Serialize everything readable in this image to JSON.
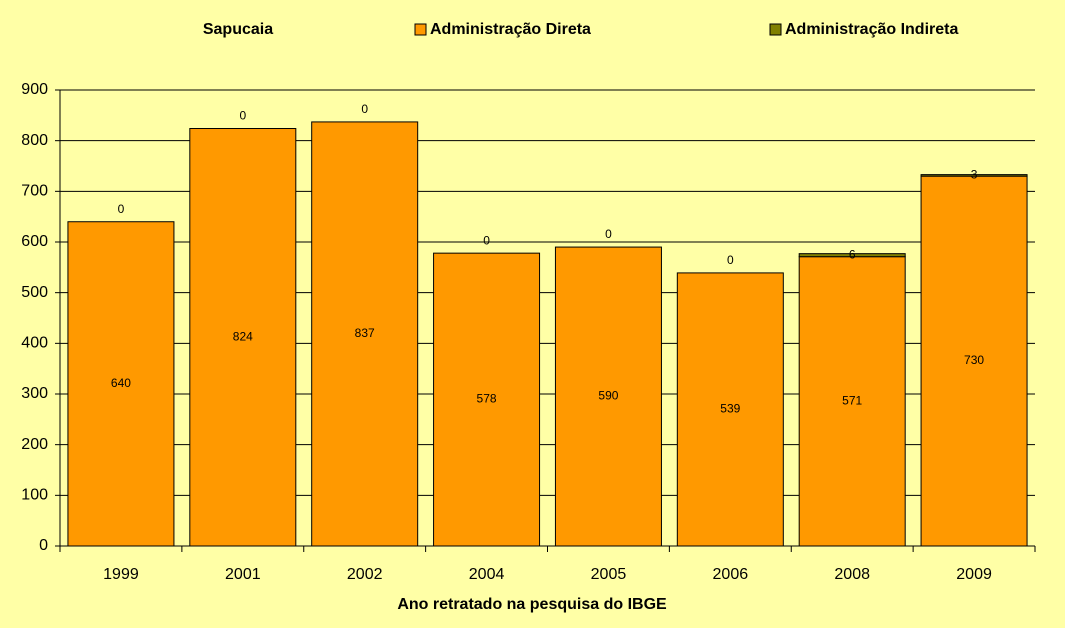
{
  "chart_data": {
    "type": "stacked_bar",
    "title": "Sapucaia",
    "x_label": "Ano retratado na pesquisa do IBGE",
    "categories": [
      "1999",
      "2001",
      "2002",
      "2004",
      "2005",
      "2006",
      "2008",
      "2009"
    ],
    "series": [
      {
        "name": "Administração Direta",
        "color": "#ff9900",
        "values": [
          640,
          824,
          837,
          578,
          590,
          539,
          571,
          730
        ]
      },
      {
        "name": "Administração Indireta",
        "color": "#808000",
        "values": [
          0,
          0,
          0,
          0,
          0,
          0,
          6,
          3
        ]
      }
    ],
    "ylim": [
      0,
      900
    ],
    "yticks": [
      0,
      100,
      200,
      300,
      400,
      500,
      600,
      700,
      800,
      900
    ],
    "grid": true,
    "legend": "top"
  }
}
